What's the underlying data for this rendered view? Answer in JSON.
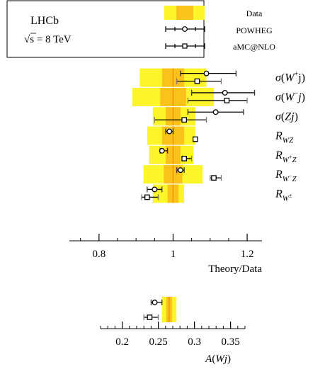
{
  "legend": {
    "experiment": "LHCb",
    "energy_prefix": "√s = ",
    "energy_value": "8 TeV",
    "entries": [
      {
        "label": "Data",
        "kind": "band"
      },
      {
        "label": "POWHEG",
        "kind": "circle"
      },
      {
        "label": "aMC@NLO",
        "kind": "square"
      }
    ]
  },
  "colors": {
    "band_outer": "#fbf52a",
    "band_inner": "#fbc21b",
    "central_line": "#f39a0b",
    "powheg": "#000000",
    "amcnlo": "#000000",
    "amcnlo_stat": "#777777"
  },
  "chart_data": [
    {
      "type": "scatter",
      "name": "ratios",
      "xlabel": "Theory/Data",
      "xlim": [
        0.72,
        1.24
      ],
      "xticks": [
        0.8,
        1.0,
        1.2
      ],
      "xtick_labels": [
        "0.8",
        "1",
        "1.2"
      ],
      "minor_step": 0.05,
      "rows": [
        {
          "label": "σ(W⁺j)",
          "band_outer": [
            0.91,
            1.09
          ],
          "band_inner": [
            0.97,
            1.03
          ],
          "powheg": {
            "value": 1.09,
            "err": [
              1.02,
              1.17
            ]
          },
          "amcnlo": {
            "value": 1.065,
            "err": [
              1.01,
              1.13
            ]
          }
        },
        {
          "label": "σ(W⁻j)",
          "band_outer": [
            0.89,
            1.11
          ],
          "band_inner": [
            0.965,
            1.035
          ],
          "powheg": {
            "value": 1.14,
            "err": [
              1.05,
              1.22
            ]
          },
          "amcnlo": {
            "value": 1.145,
            "err": [
              1.04,
              1.2
            ]
          }
        },
        {
          "label": "σ(Zj)",
          "band_outer": [
            0.945,
            1.06
          ],
          "band_inner": [
            0.98,
            1.02
          ],
          "powheg": {
            "value": 1.115,
            "err": [
              1.04,
              1.19
            ]
          },
          "amcnlo": {
            "value": 1.03,
            "err": [
              0.95,
              1.09
            ]
          }
        },
        {
          "label": "R_WZ",
          "band_outer": [
            0.93,
            1.06
          ],
          "band_inner": [
            0.97,
            1.03
          ],
          "powheg": {
            "value": 0.99,
            "err": [
              0.98,
              1.0
            ]
          },
          "amcnlo": {
            "value": 1.06,
            "err": [
              1.055,
              1.065
            ]
          }
        },
        {
          "label": "R_W+Z",
          "band_outer": [
            0.935,
            1.055
          ],
          "band_inner": [
            0.98,
            1.02
          ],
          "powheg": {
            "value": 0.97,
            "err": [
              0.965,
              0.985
            ]
          },
          "amcnlo": {
            "value": 1.03,
            "err": [
              1.025,
              1.05
            ]
          }
        },
        {
          "label": "R_W-Z",
          "band_outer": [
            0.92,
            1.08
          ],
          "band_inner": [
            0.975,
            1.025
          ],
          "powheg": {
            "value": 1.02,
            "err": [
              1.01,
              1.03
            ]
          },
          "amcnlo": {
            "value": 1.11,
            "err": [
              1.1,
              1.13
            ]
          }
        },
        {
          "label": "R_W±",
          "band_outer": [
            0.945,
            1.03
          ],
          "band_inner": [
            0.985,
            1.015
          ],
          "powheg": {
            "value": 0.95,
            "err": [
              0.93,
              0.97
            ]
          },
          "amcnlo": {
            "value": 0.93,
            "err": [
              0.915,
              0.96
            ]
          }
        }
      ]
    },
    {
      "type": "scatter",
      "name": "asymmetry",
      "xlabel": "A(Wj)",
      "xlim": [
        0.17,
        0.37
      ],
      "xticks": [
        0.2,
        0.25,
        0.3,
        0.35
      ],
      "xtick_labels": [
        "0.2",
        "0.25",
        "0.3",
        "0.35"
      ],
      "minor_step": 0.01,
      "band_outer": [
        0.255,
        0.275
      ],
      "band_inner": [
        0.261,
        0.269
      ],
      "central": 0.265,
      "powheg": {
        "value": 0.245,
        "err": [
          0.24,
          0.255
        ]
      },
      "amcnlo": {
        "value": 0.238,
        "err": [
          0.23,
          0.25
        ]
      }
    }
  ]
}
